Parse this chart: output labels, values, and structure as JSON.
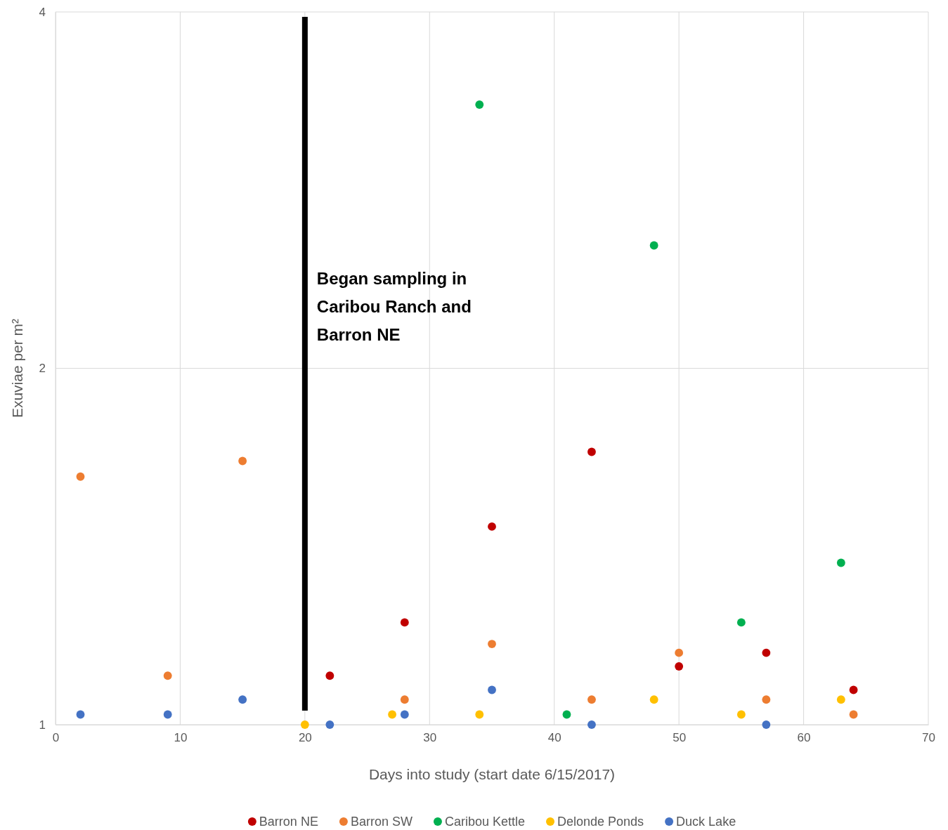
{
  "chart_data": {
    "type": "scatter",
    "xlabel": "Days into study (start date 6/15/2017)",
    "ylabel": "Exuviae per m²",
    "log": "y",
    "xlim": [
      0,
      70
    ],
    "xticks": [
      0,
      10,
      20,
      30,
      40,
      50,
      60,
      70
    ],
    "ylim": [
      1,
      4
    ],
    "yticks": [
      1,
      2,
      4
    ],
    "grid": true,
    "legend": "bottom",
    "marker": "circle",
    "ref_lines": [
      {
        "axis": "x",
        "value": 20,
        "label": "Began sampling in Caribou Ranch and Barron NE",
        "color": "#000000"
      }
    ],
    "series": [
      {
        "name": "Barron NE",
        "color": "#c00000",
        "x": [
          22,
          28,
          35,
          43,
          50,
          57,
          64
        ],
        "values": [
          1.1,
          1.22,
          1.47,
          1.7,
          1.12,
          1.15,
          1.07
        ]
      },
      {
        "name": "Barron SW",
        "color": "#ed7d31",
        "x": [
          2,
          9,
          15,
          28,
          35,
          43,
          50,
          57,
          64
        ],
        "values": [
          1.62,
          1.1,
          1.67,
          1.05,
          1.17,
          1.05,
          1.15,
          1.05,
          1.02
        ]
      },
      {
        "name": "Caribou Kettle",
        "color": "#00b050",
        "x": [
          34,
          48,
          41,
          55,
          63
        ],
        "values": [
          3.34,
          2.54,
          1.02,
          1.22,
          1.37
        ]
      },
      {
        "name": "Delonde Ponds",
        "color": "#ffc000",
        "x": [
          20,
          27,
          34,
          48,
          55,
          63
        ],
        "values": [
          1,
          1.02,
          1.02,
          1.05,
          1.02,
          1.05
        ]
      },
      {
        "name": "Duck Lake",
        "color": "#4472c4",
        "x": [
          2,
          9,
          15,
          22,
          28,
          35,
          43,
          57
        ],
        "values": [
          1.02,
          1.02,
          1.05,
          1,
          1.02,
          1.07,
          1,
          1
        ]
      }
    ]
  }
}
